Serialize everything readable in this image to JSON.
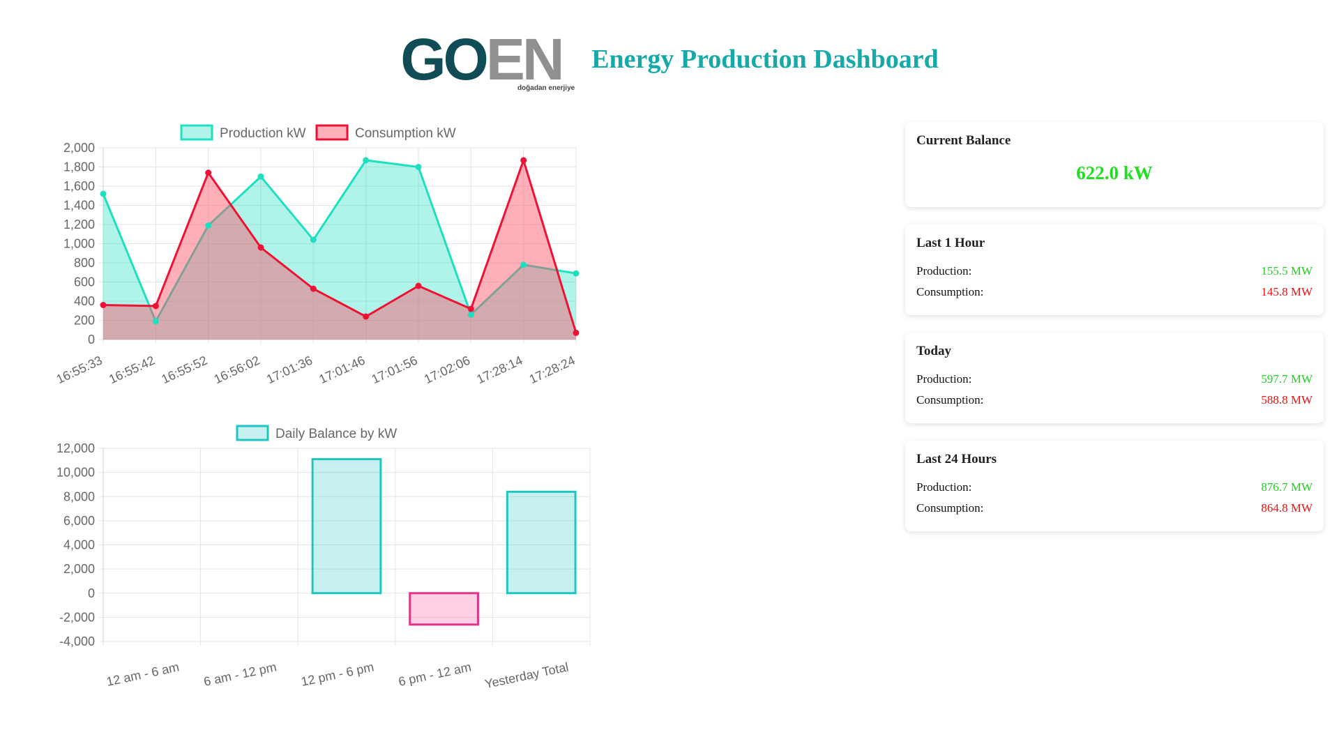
{
  "header": {
    "logo_main_left": "GO",
    "logo_main_right": "EN",
    "logo_sub": "doğadan enerjiye",
    "title": "Energy Production Dashboard"
  },
  "colors": {
    "title": "#17a9a8",
    "production_line": "#1ee0c0",
    "production_fill": "rgba(30,224,192,0.35)",
    "consumption_line": "#ee1133",
    "consumption_fill": "rgba(255,80,100,0.45)",
    "bar_positive_fill": "rgba(30,200,200,0.25)",
    "bar_positive_border": "#1fc6c0",
    "bar_negative_fill": "rgba(255,120,180,0.35)",
    "bar_negative_border": "#e6338a",
    "good": "#22cc22",
    "bad": "#ee1111"
  },
  "chart_data": [
    {
      "type": "line",
      "x": [
        "16:55:33",
        "16:55:42",
        "16:55:52",
        "16:56:02",
        "17:01:36",
        "17:01:46",
        "17:01:56",
        "17:02:06",
        "17:28:14",
        "17:28:24"
      ],
      "series": [
        {
          "name": "Production kW",
          "values": [
            1520,
            190,
            1190,
            1700,
            1040,
            1870,
            1800,
            260,
            780,
            690
          ]
        },
        {
          "name": "Consumption kW",
          "values": [
            360,
            350,
            1740,
            960,
            530,
            240,
            560,
            320,
            1870,
            70
          ]
        }
      ],
      "y_ticks": [
        "0",
        "200",
        "400",
        "600",
        "800",
        "1,000",
        "1,200",
        "1,400",
        "1,600",
        "1,800",
        "2,000"
      ],
      "ylim": [
        0,
        2000
      ],
      "grid": true,
      "legend": "top-center",
      "filled": true
    },
    {
      "type": "bar",
      "categories": [
        "12 am - 6 am",
        "6 am - 12 pm",
        "12 pm - 6 pm",
        "6 pm - 12 am",
        "Yesterday Total"
      ],
      "series": [
        {
          "name": "Daily Balance by kW",
          "values": [
            0,
            0,
            11100,
            -2600,
            8400
          ]
        }
      ],
      "y_ticks": [
        "-4,000",
        "-2,000",
        "0",
        "2,000",
        "4,000",
        "6,000",
        "8,000",
        "10,000",
        "12,000"
      ],
      "ylim": [
        -4000,
        12000
      ],
      "grid": true,
      "legend": "top-center"
    }
  ],
  "cards": {
    "current": {
      "title": "Current Balance",
      "value": "622.0 kW"
    },
    "hour": {
      "title": "Last 1 Hour",
      "prod_label": "Production:",
      "prod_value": "155.5 MW",
      "cons_label": "Consumption:",
      "cons_value": "145.8 MW"
    },
    "today": {
      "title": "Today",
      "prod_label": "Production:",
      "prod_value": "597.7 MW",
      "cons_label": "Consumption:",
      "cons_value": "588.8 MW"
    },
    "day": {
      "title": "Last 24 Hours",
      "prod_label": "Production:",
      "prod_value": "876.7 MW",
      "cons_label": "Consumption:",
      "cons_value": "864.8 MW"
    }
  }
}
